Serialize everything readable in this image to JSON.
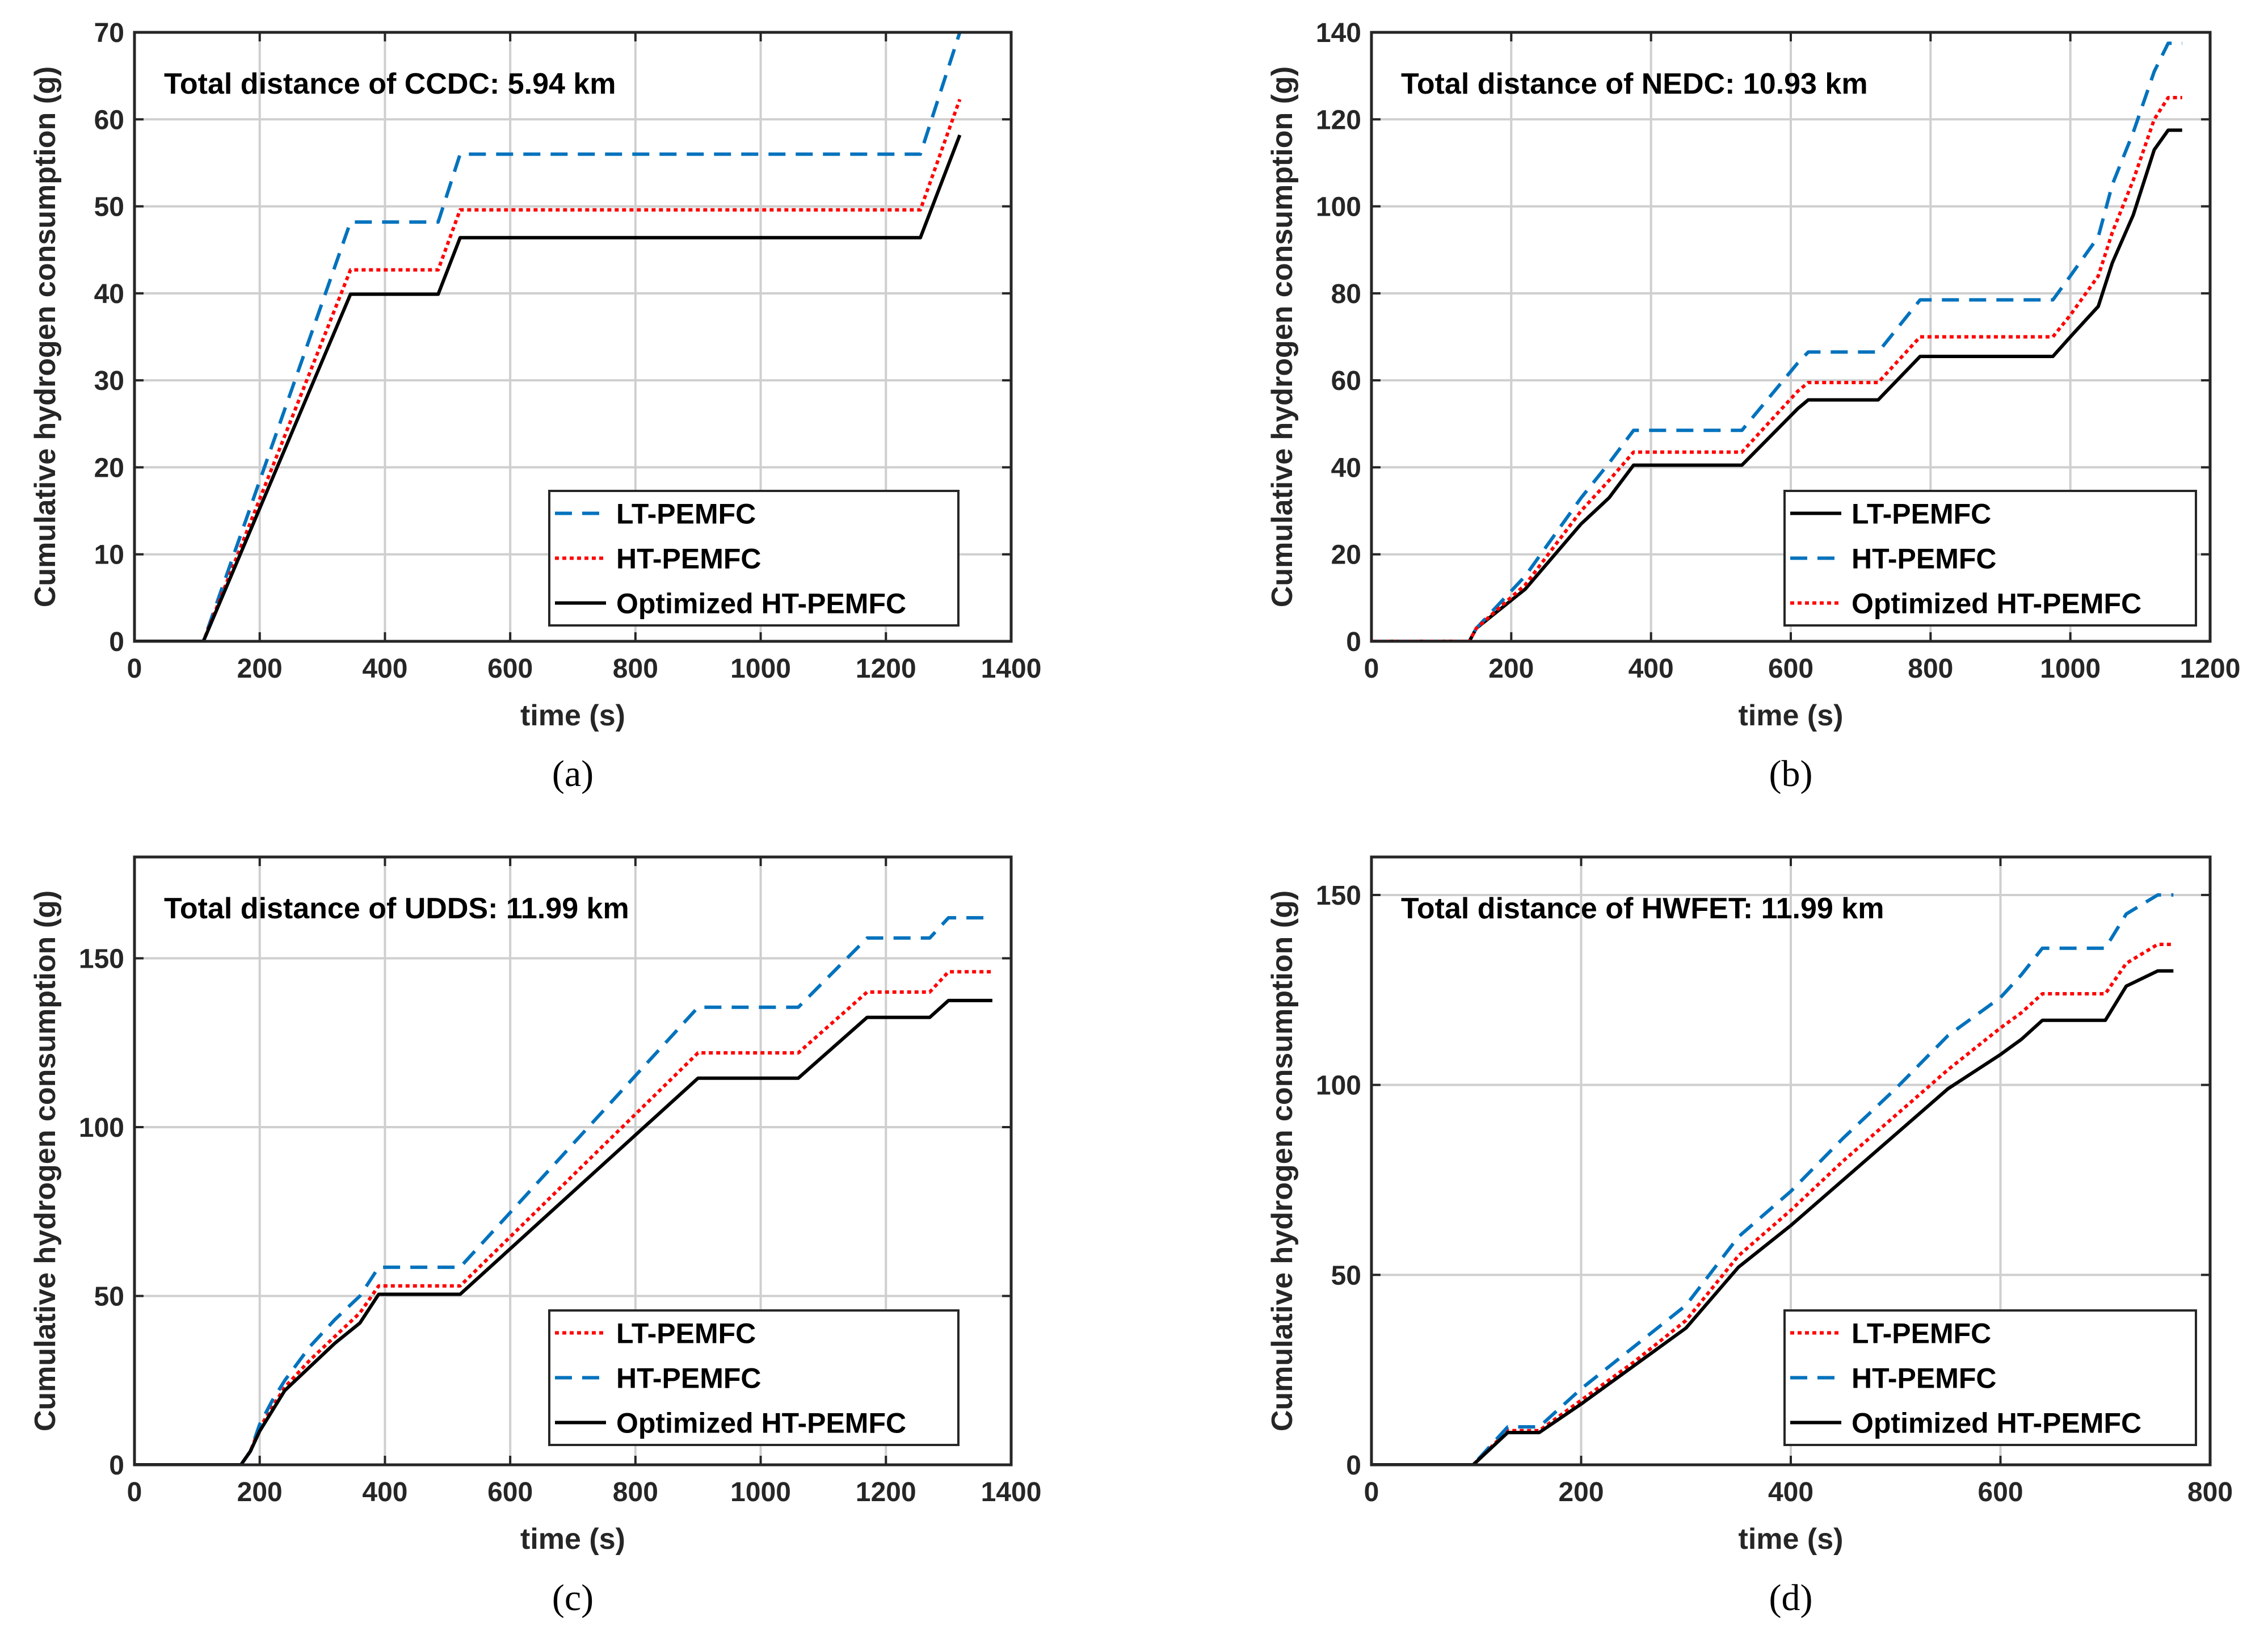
{
  "chart_data": [
    {
      "type": "line",
      "panel": "a",
      "caption": "(a)",
      "annotation": "Total distance of CCDC: 5.94 km",
      "xlabel": "time (s)",
      "ylabel": "Cumulative hydrogen consumption (g)",
      "xlim": [
        0,
        1400
      ],
      "ylim": [
        0,
        70
      ],
      "xticks": [
        0,
        200,
        400,
        600,
        800,
        1000,
        1200,
        1400
      ],
      "yticks": [
        0,
        10,
        20,
        30,
        40,
        50,
        60,
        70
      ],
      "grid": true,
      "legend_position": "bottom-right",
      "series": [
        {
          "name": "LT-PEMFC",
          "color": "#0072BD",
          "style": "dashed",
          "x": [
            0,
            110,
            345,
            485,
            520,
            1255,
            1318
          ],
          "y": [
            0,
            0,
            48.2,
            48.2,
            56,
            56,
            70
          ]
        },
        {
          "name": "HT-PEMFC",
          "color": "#FF0000",
          "style": "dotted",
          "x": [
            0,
            110,
            345,
            485,
            520,
            1255,
            1318
          ],
          "y": [
            0,
            0,
            42.7,
            42.7,
            49.6,
            49.6,
            62.3
          ]
        },
        {
          "name": "Optimized HT-PEMFC",
          "color": "#000000",
          "style": "solid",
          "x": [
            0,
            110,
            345,
            485,
            520,
            1255,
            1318
          ],
          "y": [
            0,
            0,
            39.9,
            39.9,
            46.4,
            46.4,
            58.2
          ]
        }
      ]
    },
    {
      "type": "line",
      "panel": "b",
      "caption": "(b)",
      "annotation": "Total distance of NEDC: 10.93 km",
      "xlabel": "time (s)",
      "ylabel": "Cumulative hydrogen consumption (g)",
      "xlim": [
        0,
        1200
      ],
      "ylim": [
        0,
        140
      ],
      "xticks": [
        0,
        200,
        400,
        600,
        800,
        1000,
        1200
      ],
      "yticks": [
        0,
        20,
        40,
        60,
        80,
        100,
        120,
        140
      ],
      "grid": true,
      "legend_position": "bottom-right",
      "series": [
        {
          "name": "LT-PEMFC",
          "color": "#000000",
          "style": "solid",
          "x": [
            0,
            140,
            150,
            220,
            300,
            340,
            375,
            530,
            610,
            625,
            725,
            785,
            975,
            1000,
            1040,
            1060,
            1090,
            1120,
            1140,
            1160
          ],
          "y": [
            0,
            0,
            3,
            12,
            27,
            33,
            40.5,
            40.5,
            53.5,
            55.5,
            55.5,
            65.5,
            65.5,
            70,
            77,
            87,
            98,
            113,
            117.5,
            117.5
          ]
        },
        {
          "name": "HT-PEMFC",
          "color": "#0072BD",
          "style": "dashed",
          "x": [
            0,
            140,
            150,
            220,
            300,
            340,
            375,
            530,
            610,
            625,
            725,
            785,
            975,
            1000,
            1040,
            1060,
            1090,
            1120,
            1140,
            1160
          ],
          "y": [
            0,
            0,
            3,
            15,
            33,
            41,
            48.5,
            48.5,
            64,
            66.5,
            66.5,
            78.5,
            78.5,
            84,
            93,
            105,
            117,
            131,
            137.5,
            137.5
          ]
        },
        {
          "name": "Optimized HT-PEMFC",
          "color": "#FF0000",
          "style": "dotted",
          "x": [
            0,
            140,
            150,
            220,
            300,
            340,
            375,
            530,
            610,
            625,
            725,
            785,
            975,
            1000,
            1040,
            1060,
            1090,
            1120,
            1140,
            1160
          ],
          "y": [
            0,
            0,
            3,
            13,
            30,
            37,
            43.5,
            43.5,
            57.5,
            59.5,
            59.5,
            70,
            70,
            75,
            84,
            94,
            106,
            120,
            125,
            125
          ]
        }
      ]
    },
    {
      "type": "line",
      "panel": "c",
      "caption": "(c)",
      "annotation": "Total distance of UDDS: 11.99 km",
      "xlabel": "time (s)",
      "ylabel": "Cumulative hydrogen consumption (g)",
      "xlim": [
        0,
        1400
      ],
      "ylim": [
        0,
        180
      ],
      "xticks": [
        0,
        200,
        400,
        600,
        800,
        1000,
        1200,
        1400
      ],
      "yticks": [
        0,
        50,
        100,
        150
      ],
      "grid": true,
      "legend_position": "bottom-right",
      "series": [
        {
          "name": "LT-PEMFC",
          "color": "#FF0000",
          "style": "dotted",
          "x": [
            0,
            170,
            185,
            200,
            220,
            240,
            280,
            320,
            360,
            390,
            520,
            900,
            1060,
            1170,
            1270,
            1300,
            1370
          ],
          "y": [
            0,
            0,
            4,
            11,
            17,
            23,
            31,
            38,
            45,
            53,
            53,
            122,
            122,
            140,
            140,
            146,
            146
          ]
        },
        {
          "name": "HT-PEMFC",
          "color": "#0072BD",
          "style": "dashed",
          "x": [
            0,
            170,
            185,
            200,
            220,
            240,
            280,
            320,
            360,
            390,
            520,
            900,
            1060,
            1170,
            1270,
            1300,
            1370
          ],
          "y": [
            0,
            0,
            4,
            12,
            19,
            25,
            35,
            43,
            50,
            58.5,
            58.5,
            135.5,
            135.5,
            156,
            156,
            162,
            162
          ]
        },
        {
          "name": "Optimized HT-PEMFC",
          "color": "#000000",
          "style": "solid",
          "x": [
            0,
            170,
            185,
            200,
            220,
            240,
            280,
            320,
            360,
            390,
            520,
            900,
            1060,
            1170,
            1270,
            1300,
            1370
          ],
          "y": [
            0,
            0,
            4,
            10,
            16,
            22,
            29,
            36,
            42,
            50.5,
            50.5,
            114.5,
            114.5,
            132.5,
            132.5,
            137.5,
            137.5
          ]
        }
      ]
    },
    {
      "type": "line",
      "panel": "d",
      "caption": "(d)",
      "annotation": "Total distance of HWFET: 11.99 km",
      "xlabel": "time (s)",
      "ylabel": "Cumulative hydrogen consumption (g)",
      "xlim": [
        0,
        800
      ],
      "ylim": [
        0,
        160
      ],
      "xticks": [
        0,
        200,
        400,
        600,
        800
      ],
      "yticks": [
        0,
        50,
        100,
        150
      ],
      "grid": true,
      "legend_position": "bottom-right",
      "series": [
        {
          "name": "LT-PEMFC",
          "color": "#FF0000",
          "style": "dotted",
          "x": [
            0,
            97,
            130,
            160,
            200,
            250,
            300,
            350,
            400,
            450,
            500,
            550,
            600,
            620,
            640,
            700,
            720,
            750,
            765
          ],
          "y": [
            0,
            0,
            9,
            9,
            17,
            27,
            38,
            55,
            67,
            80,
            92,
            104,
            115,
            119,
            124,
            124,
            132,
            137,
            137
          ]
        },
        {
          "name": "HT-PEMFC",
          "color": "#0072BD",
          "style": "dashed",
          "x": [
            0,
            97,
            130,
            160,
            200,
            250,
            300,
            350,
            400,
            450,
            500,
            550,
            600,
            620,
            640,
            700,
            720,
            750,
            765
          ],
          "y": [
            0,
            0,
            10,
            10,
            20,
            31,
            42,
            60,
            72,
            86,
            99,
            113,
            123,
            129,
            136,
            136,
            145,
            150,
            150
          ]
        },
        {
          "name": "Optimized HT-PEMFC",
          "color": "#000000",
          "style": "solid",
          "x": [
            0,
            97,
            130,
            160,
            200,
            250,
            300,
            350,
            400,
            450,
            500,
            550,
            600,
            620,
            640,
            700,
            720,
            750,
            765
          ],
          "y": [
            0,
            0,
            8.5,
            8.5,
            16,
            26,
            36,
            52,
            63,
            75,
            87,
            99,
            108,
            112,
            117,
            117,
            126,
            130,
            130
          ]
        }
      ]
    }
  ]
}
